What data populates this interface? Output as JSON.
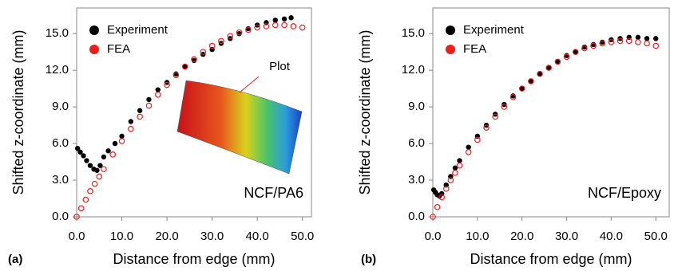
{
  "chart_data": [
    {
      "type": "scatter",
      "panel_label": "(a)",
      "annotation": "NCF/PA6",
      "inset_label": "Plot",
      "xlabel": "Distance from edge (mm)",
      "ylabel": "Shifted z-coordinate (mm)",
      "xlim": [
        0,
        52
      ],
      "ylim": [
        0,
        17.1
      ],
      "legend": "upper left",
      "xticks": [
        {
          "value": 0,
          "label": "0.0"
        },
        {
          "value": 10,
          "label": "10.0"
        },
        {
          "value": 20,
          "label": "20.0"
        },
        {
          "value": 30,
          "label": "30.0"
        },
        {
          "value": 40,
          "label": "40.0"
        },
        {
          "value": 50,
          "label": "50.0"
        }
      ],
      "yticks": [
        {
          "value": 0,
          "label": "0.0"
        },
        {
          "value": 3,
          "label": "3.0"
        },
        {
          "value": 6,
          "label": "6.0"
        },
        {
          "value": 9,
          "label": "9.0"
        },
        {
          "value": 12,
          "label": "12.0"
        },
        {
          "value": 15,
          "label": "15.0"
        }
      ],
      "series": [
        {
          "name": "Experiment",
          "color": "#000000",
          "x": [
            0.2,
            0.8,
            1.5,
            2.2,
            3.0,
            3.8,
            4.5,
            5.2,
            6.0,
            7.0,
            8.5,
            10,
            12,
            14,
            16,
            18,
            20,
            22,
            24,
            26,
            28,
            30,
            32,
            34,
            36,
            38,
            40,
            42,
            44,
            46,
            47.5
          ],
          "values": [
            5.6,
            5.3,
            5.0,
            4.6,
            4.2,
            3.9,
            3.8,
            4.2,
            4.9,
            5.4,
            6.0,
            6.6,
            7.8,
            8.7,
            9.6,
            10.4,
            11.0,
            11.7,
            12.3,
            12.8,
            13.3,
            13.7,
            14.2,
            14.6,
            15.0,
            15.4,
            15.7,
            15.9,
            16.1,
            16.2,
            16.3
          ]
        },
        {
          "name": "FEA",
          "color": "#e8201e",
          "x": [
            0,
            1,
            2,
            3,
            4,
            5,
            6,
            8,
            10,
            12,
            14,
            16,
            18,
            20,
            22,
            24,
            26,
            28,
            30,
            32,
            34,
            36,
            38,
            40,
            42,
            44,
            46,
            48,
            50
          ],
          "values": [
            0,
            0.7,
            1.4,
            2.1,
            2.7,
            3.3,
            3.9,
            5.1,
            6.2,
            7.2,
            8.2,
            9.1,
            10.0,
            10.8,
            11.6,
            12.3,
            12.9,
            13.5,
            14.0,
            14.4,
            14.8,
            15.1,
            15.3,
            15.5,
            15.6,
            15.7,
            15.7,
            15.6,
            15.5
          ]
        }
      ]
    },
    {
      "type": "scatter",
      "panel_label": "(b)",
      "annotation": "NCF/Epoxy",
      "xlabel": "Distance from edge (mm)",
      "ylabel": "Shifted z-coordinate (mm)",
      "xlim": [
        0,
        53
      ],
      "ylim": [
        0,
        17.1
      ],
      "legend": "upper left",
      "xticks": [
        {
          "value": 0,
          "label": "0.0"
        },
        {
          "value": 10,
          "label": "10.0"
        },
        {
          "value": 20,
          "label": "20.0"
        },
        {
          "value": 30,
          "label": "30.0"
        },
        {
          "value": 40,
          "label": "40.0"
        },
        {
          "value": 50,
          "label": "50.0"
        }
      ],
      "yticks": [
        {
          "value": 0,
          "label": "0.0"
        },
        {
          "value": 3,
          "label": "3.0"
        },
        {
          "value": 6,
          "label": "6.0"
        },
        {
          "value": 9,
          "label": "9.0"
        },
        {
          "value": 12,
          "label": "12.0"
        },
        {
          "value": 15,
          "label": "15.0"
        }
      ],
      "series": [
        {
          "name": "Experiment",
          "color": "#000000",
          "x": [
            0.2,
            0.6,
            1.0,
            1.5,
            2.0,
            3,
            4,
            5,
            6,
            8,
            10,
            12,
            14,
            16,
            18,
            20,
            22,
            24,
            26,
            28,
            30,
            32,
            34,
            36,
            38,
            40,
            42,
            44,
            46,
            48,
            50
          ],
          "values": [
            2.2,
            2.0,
            1.8,
            1.7,
            1.9,
            2.6,
            3.3,
            4.0,
            4.6,
            5.7,
            6.6,
            7.5,
            8.4,
            9.2,
            9.9,
            10.5,
            11.1,
            11.7,
            12.2,
            12.7,
            13.2,
            13.5,
            13.9,
            14.1,
            14.3,
            14.5,
            14.6,
            14.7,
            14.7,
            14.6,
            14.6
          ]
        },
        {
          "name": "FEA",
          "color": "#e8201e",
          "x": [
            0,
            1,
            2,
            3,
            4,
            5,
            6,
            8,
            10,
            12,
            14,
            16,
            18,
            20,
            22,
            24,
            26,
            28,
            30,
            32,
            34,
            36,
            38,
            40,
            42,
            44,
            46,
            48,
            50
          ],
          "values": [
            0,
            0.8,
            1.6,
            2.3,
            3.0,
            3.6,
            4.2,
            5.3,
            6.3,
            7.3,
            8.2,
            9.0,
            9.8,
            10.5,
            11.1,
            11.7,
            12.2,
            12.7,
            13.1,
            13.5,
            13.8,
            14.0,
            14.2,
            14.3,
            14.4,
            14.4,
            14.3,
            14.2,
            14.0
          ]
        }
      ]
    }
  ]
}
